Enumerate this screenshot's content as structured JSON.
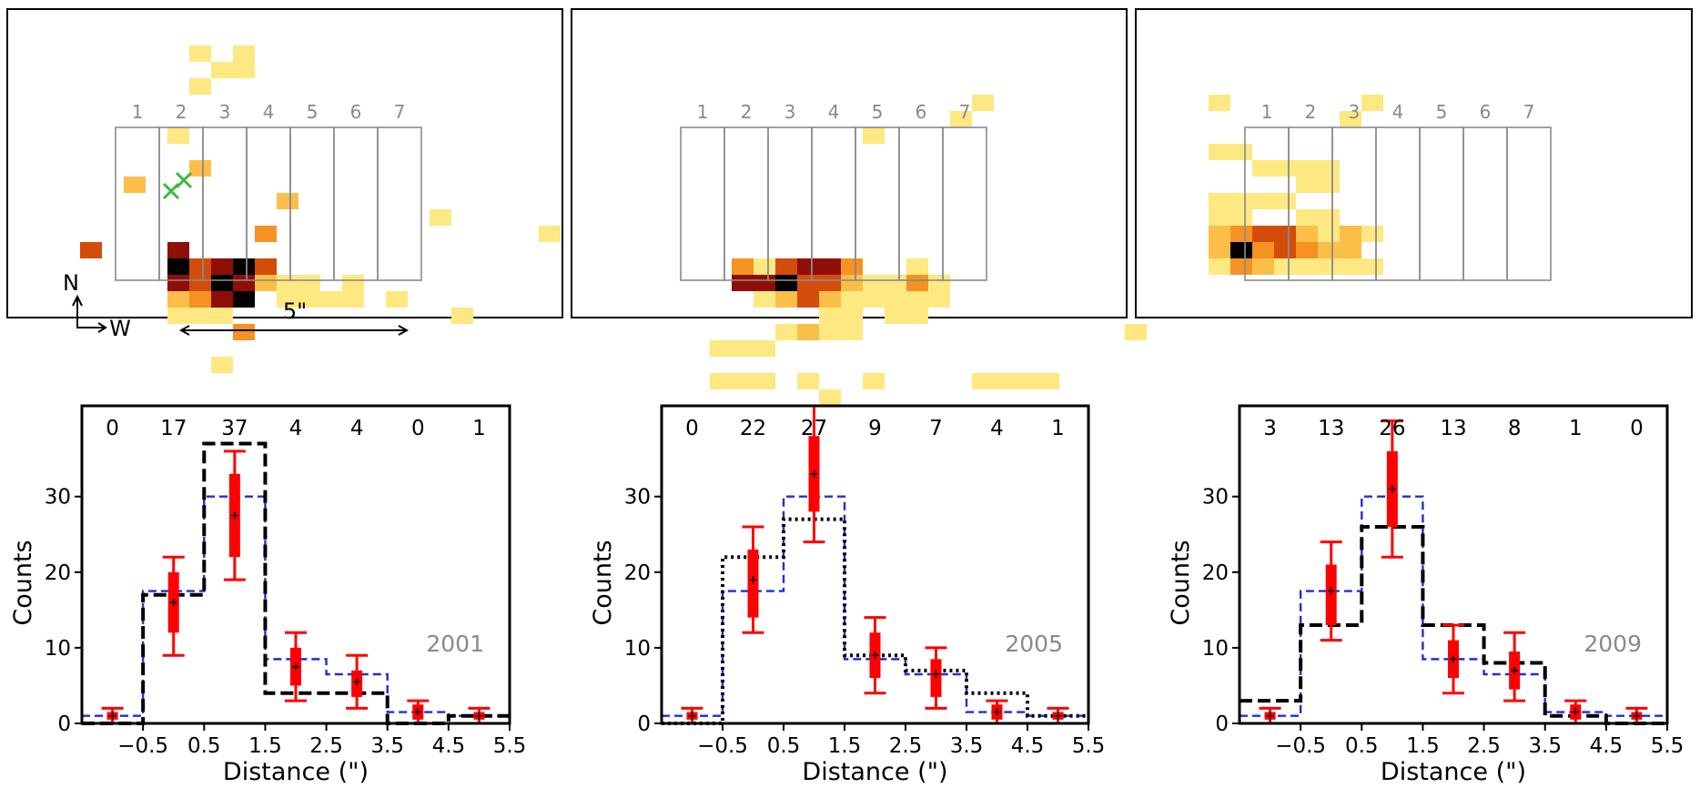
{
  "panels": [
    {
      "compass": {
        "north": "N",
        "west": "W"
      },
      "scale_label": "5\"",
      "x_markers": 2,
      "cells": [
        [
          8,
          4,
          0
        ],
        [
          10,
          3,
          0
        ],
        [
          8,
          2,
          0
        ],
        [
          8,
          4,
          0
        ],
        [
          10,
          2,
          0
        ],
        [
          9,
          3,
          0
        ],
        [
          7,
          7,
          0
        ],
        [
          8,
          9,
          1
        ],
        [
          5,
          10,
          1
        ],
        [
          12,
          11,
          1
        ],
        [
          15,
          16,
          0
        ],
        [
          19,
          12,
          0
        ],
        [
          11,
          13,
          2
        ],
        [
          3,
          14,
          3
        ],
        [
          7,
          14,
          4
        ],
        [
          8,
          15,
          3
        ],
        [
          9,
          15,
          4
        ],
        [
          7,
          15,
          5
        ],
        [
          10,
          15,
          5
        ],
        [
          11,
          15,
          3
        ],
        [
          7,
          16,
          4
        ],
        [
          8,
          16,
          3
        ],
        [
          9,
          16,
          5
        ],
        [
          10,
          16,
          4
        ],
        [
          11,
          16,
          1
        ],
        [
          12,
          16,
          0
        ],
        [
          13,
          16,
          0
        ],
        [
          7,
          17,
          1
        ],
        [
          8,
          17,
          2
        ],
        [
          9,
          17,
          4
        ],
        [
          10,
          17,
          5
        ],
        [
          12,
          17,
          0
        ],
        [
          13,
          17,
          0
        ],
        [
          14,
          17,
          0
        ],
        [
          15,
          17,
          0
        ],
        [
          17,
          17,
          0
        ],
        [
          7,
          18,
          0
        ],
        [
          8,
          18,
          0
        ],
        [
          9,
          18,
          0
        ],
        [
          20,
          18,
          0
        ],
        [
          10,
          19,
          2
        ],
        [
          9,
          21,
          0
        ],
        [
          24,
          13,
          0
        ]
      ]
    },
    {
      "cells": [
        [
          18,
          5,
          0
        ],
        [
          17,
          6,
          0
        ],
        [
          13,
          7,
          0
        ],
        [
          7,
          15,
          2
        ],
        [
          8,
          15,
          0
        ],
        [
          9,
          15,
          3
        ],
        [
          10,
          15,
          4
        ],
        [
          11,
          15,
          4
        ],
        [
          12,
          15,
          2
        ],
        [
          15,
          15,
          0
        ],
        [
          16,
          16,
          0
        ],
        [
          7,
          16,
          4
        ],
        [
          8,
          16,
          4
        ],
        [
          9,
          16,
          5
        ],
        [
          10,
          16,
          3
        ],
        [
          11,
          16,
          3
        ],
        [
          12,
          16,
          1
        ],
        [
          13,
          16,
          0
        ],
        [
          14,
          16,
          0
        ],
        [
          15,
          16,
          2
        ],
        [
          16,
          16,
          0
        ],
        [
          8,
          17,
          0
        ],
        [
          9,
          17,
          1
        ],
        [
          10,
          17,
          3
        ],
        [
          11,
          17,
          1
        ],
        [
          12,
          17,
          0
        ],
        [
          13,
          17,
          0
        ],
        [
          14,
          17,
          0
        ],
        [
          15,
          17,
          0
        ],
        [
          16,
          17,
          0
        ],
        [
          11,
          18,
          0
        ],
        [
          12,
          18,
          0
        ],
        [
          14,
          18,
          0
        ],
        [
          15,
          18,
          0
        ],
        [
          6,
          20,
          0
        ],
        [
          7,
          20,
          0
        ],
        [
          8,
          20,
          0
        ],
        [
          11,
          19,
          0
        ],
        [
          12,
          19,
          0
        ],
        [
          10,
          19,
          1
        ],
        [
          9,
          19,
          0
        ],
        [
          14,
          18,
          0
        ],
        [
          6,
          22,
          0
        ],
        [
          7,
          22,
          0
        ],
        [
          8,
          22,
          0
        ],
        [
          10,
          22,
          0
        ],
        [
          13,
          22,
          0
        ],
        [
          18,
          22,
          0
        ],
        [
          19,
          22,
          0
        ],
        [
          20,
          22,
          0
        ],
        [
          21,
          22,
          0
        ],
        [
          25,
          19,
          0
        ],
        [
          11,
          23,
          0
        ]
      ]
    },
    {
      "cells": [
        [
          3,
          5,
          0
        ],
        [
          10,
          5,
          0
        ],
        [
          9,
          6,
          0
        ],
        [
          3,
          8,
          0
        ],
        [
          4,
          8,
          0
        ],
        [
          5,
          9,
          0
        ],
        [
          6,
          9,
          0
        ],
        [
          7,
          9,
          0
        ],
        [
          8,
          9,
          0
        ],
        [
          7,
          10,
          0
        ],
        [
          8,
          10,
          0
        ],
        [
          3,
          11,
          0
        ],
        [
          4,
          11,
          0
        ],
        [
          5,
          11,
          0
        ],
        [
          6,
          11,
          0
        ],
        [
          3,
          12,
          0
        ],
        [
          4,
          12,
          0
        ],
        [
          7,
          12,
          0
        ],
        [
          8,
          12,
          0
        ],
        [
          3,
          13,
          1
        ],
        [
          4,
          13,
          2
        ],
        [
          5,
          13,
          3
        ],
        [
          6,
          13,
          3
        ],
        [
          7,
          13,
          1
        ],
        [
          8,
          13,
          0
        ],
        [
          9,
          13,
          1
        ],
        [
          10,
          13,
          0
        ],
        [
          3,
          14,
          1
        ],
        [
          4,
          14,
          5
        ],
        [
          5,
          14,
          2
        ],
        [
          6,
          14,
          3
        ],
        [
          7,
          14,
          2
        ],
        [
          8,
          14,
          1
        ],
        [
          9,
          14,
          1
        ],
        [
          3,
          15,
          0
        ],
        [
          4,
          15,
          2
        ],
        [
          5,
          15,
          1
        ],
        [
          6,
          15,
          0
        ],
        [
          7,
          15,
          0
        ],
        [
          8,
          15,
          0
        ],
        [
          9,
          15,
          0
        ],
        [
          10,
          15,
          0
        ]
      ]
    }
  ],
  "histograms": [
    {
      "year": "2001",
      "counts_labels": [
        "0",
        "17",
        "37",
        "4",
        "4",
        "0",
        "1"
      ],
      "tick_labels": [
        "−0.5",
        "0.5",
        "1.5",
        "2.5",
        "3.5",
        "4.5",
        "5.5"
      ],
      "ylabel": "Counts",
      "xlabel": "Distance (\")"
    },
    {
      "year": "2005",
      "counts_labels": [
        "0",
        "22",
        "27",
        "9",
        "7",
        "4",
        "1"
      ],
      "tick_labels": [
        "−0.5",
        "0.5",
        "1.5",
        "2.5",
        "3.5",
        "4.5",
        "5.5"
      ],
      "ylabel": "Counts",
      "xlabel": "Distance (\")"
    },
    {
      "year": "2009",
      "counts_labels": [
        "3",
        "13",
        "26",
        "13",
        "8",
        "1",
        "0"
      ],
      "tick_labels": [
        "−0.5",
        "0.5",
        "1.5",
        "2.5",
        "3.5",
        "4.5",
        "5.5"
      ],
      "ylabel": "Counts",
      "xlabel": "Distance (\")"
    }
  ],
  "chart_data": [
    {
      "type": "bar",
      "title": "2001",
      "xlabel": "Distance (\")",
      "ylabel": "Counts",
      "xlim": [
        -1.5,
        5.5
      ],
      "ylim": [
        0,
        42
      ],
      "yticks": [
        0,
        10,
        20,
        30
      ],
      "x": [
        -1,
        0,
        1,
        2,
        3,
        4,
        5
      ],
      "observed": [
        0,
        17,
        37,
        4,
        4,
        0,
        1
      ],
      "observed_style": "dashed",
      "model": [
        1,
        17.5,
        30,
        8.5,
        6.5,
        1.5,
        1
      ],
      "model_points": [
        1,
        16,
        27.5,
        7.5,
        5.5,
        1.5,
        1
      ],
      "error_low": [
        0,
        9,
        19,
        3,
        2,
        0,
        0
      ],
      "error_high": [
        2,
        22,
        36,
        12,
        9,
        3,
        2
      ],
      "inner_low": [
        0.5,
        12,
        22,
        5,
        3.5,
        0.5,
        0.5
      ],
      "inner_high": [
        1.5,
        20,
        33,
        10,
        7,
        2.5,
        1.5
      ]
    },
    {
      "type": "bar",
      "title": "2005",
      "xlabel": "Distance (\")",
      "ylabel": "Counts",
      "xlim": [
        -1.5,
        5.5
      ],
      "ylim": [
        0,
        42
      ],
      "yticks": [
        0,
        10,
        20,
        30
      ],
      "x": [
        -1,
        0,
        1,
        2,
        3,
        4,
        5
      ],
      "observed": [
        0,
        22,
        27,
        9,
        7,
        4,
        1
      ],
      "observed_style": "dotted",
      "model": [
        1,
        17.5,
        30,
        8.5,
        6.5,
        1.5,
        1
      ],
      "model_points": [
        1,
        19,
        33,
        9,
        6.5,
        1.5,
        1
      ],
      "error_low": [
        0,
        12,
        24,
        4,
        2,
        0,
        0
      ],
      "error_high": [
        2,
        26,
        42,
        14,
        10,
        3,
        2
      ],
      "inner_low": [
        0.5,
        14,
        28,
        6,
        3.5,
        0.5,
        0.5
      ],
      "inner_high": [
        1.5,
        23,
        38,
        12,
        8.5,
        2.5,
        1.5
      ]
    },
    {
      "type": "bar",
      "title": "2009",
      "xlabel": "Distance (\")",
      "ylabel": "Counts",
      "xlim": [
        -1.5,
        5.5
      ],
      "ylim": [
        0,
        42
      ],
      "yticks": [
        0,
        10,
        20,
        30
      ],
      "x": [
        -1,
        0,
        1,
        2,
        3,
        4,
        5
      ],
      "observed": [
        3,
        13,
        26,
        13,
        8,
        1,
        0
      ],
      "observed_style": "dashed",
      "model": [
        1,
        17.5,
        30,
        8.5,
        6.5,
        1.5,
        1
      ],
      "model_points": [
        1,
        17.5,
        31,
        8.5,
        7,
        1.5,
        1
      ],
      "error_low": [
        0,
        11,
        22,
        4,
        3,
        0,
        0
      ],
      "error_high": [
        2,
        24,
        40,
        13,
        12,
        3,
        2
      ],
      "inner_low": [
        0.5,
        13,
        26,
        6,
        4.5,
        0.5,
        0.5
      ],
      "inner_high": [
        1.5,
        21,
        36,
        11,
        9.5,
        2.5,
        1.5
      ]
    }
  ],
  "grid": {
    "labels": [
      "1",
      "2",
      "3",
      "4",
      "5",
      "6",
      "7"
    ]
  },
  "colors": {
    "heat": [
      "#fde882",
      "#fbbf49",
      "#f59221",
      "#d44c0b",
      "#8f0e08",
      "#000000"
    ],
    "model": "#1f2fd6",
    "error": "#ff0000",
    "marker": "#3cb93c"
  }
}
